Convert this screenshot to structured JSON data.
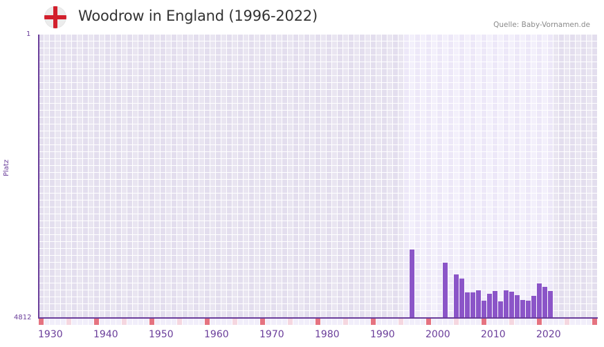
{
  "header": {
    "flag_icon": "england-flag-icon",
    "title": "Woodrow in England (1996-2022)",
    "source": "Quelle: Baby-Vornamen.de"
  },
  "axes": {
    "y_title": "Platz",
    "y_top_label": "1",
    "y_bottom_label": "4812",
    "x_ticks": [
      "1930",
      "1940",
      "1950",
      "1960",
      "1970",
      "1980",
      "1990",
      "2000",
      "2010",
      "2020"
    ]
  },
  "colors": {
    "bar": "#8b55c8",
    "axis": "#6a3d9a",
    "grid_bg_out": "#e3deee",
    "grid_bg_out_alt": "#e9e5f1",
    "grid_bg_in": "#ede8f8",
    "grid_bg_in_alt": "#f3f0fb",
    "decade_marker": "#e57380",
    "half_decade_marker": "#f5d7e0",
    "year_marker": "#f1eefa"
  },
  "chart_data": {
    "type": "bar",
    "title": "Woodrow in England (1996-2022)",
    "xlabel": "",
    "ylabel": "Platz",
    "y_inverted": true,
    "ylim": [
      1,
      4812
    ],
    "x_range": [
      1930,
      2030
    ],
    "highlight_range": [
      1996,
      2022
    ],
    "grid": true,
    "source": "Quelle: Baby-Vornamen.de",
    "categories": [
      "1997",
      "2003",
      "2005",
      "2006",
      "2007",
      "2008",
      "2009",
      "2010",
      "2011",
      "2012",
      "2013",
      "2014",
      "2015",
      "2016",
      "2017",
      "2018",
      "2019",
      "2020",
      "2021",
      "2022"
    ],
    "values": [
      3650,
      3872,
      4072,
      4142,
      4377,
      4377,
      4342,
      4518,
      4400,
      4353,
      4530,
      4342,
      4365,
      4423,
      4506,
      4518,
      4435,
      4224,
      4283,
      4353
    ]
  }
}
